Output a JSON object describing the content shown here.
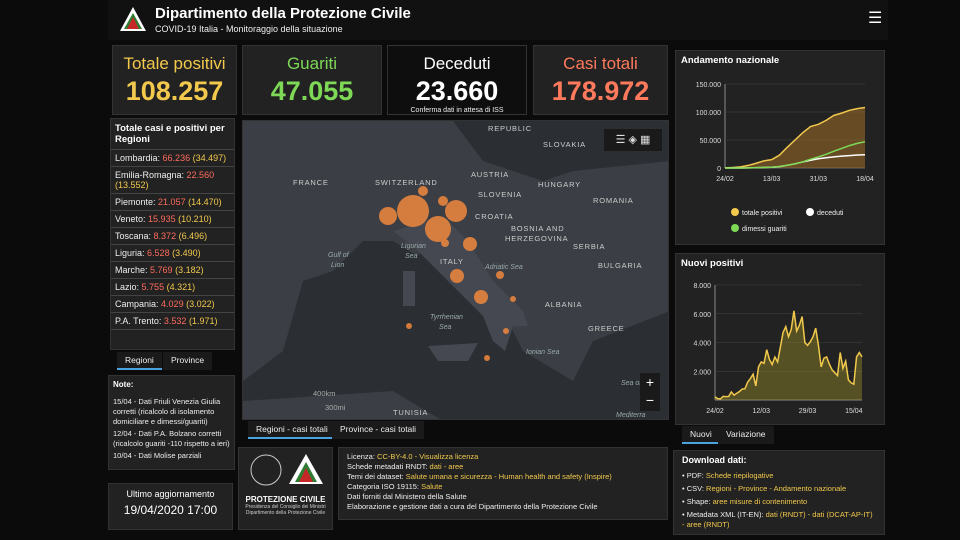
{
  "header": {
    "title": "Dipartimento della Protezione Civile",
    "subtitle": "COVID-19 Italia - Monitoraggio della situazione"
  },
  "kpis": [
    {
      "label": "Totale positivi",
      "value": "108.257"
    },
    {
      "label": "Guariti",
      "value": "47.055"
    },
    {
      "label": "Deceduti",
      "value": "23.660",
      "note": "Conferma dati in attesa di ISS"
    },
    {
      "label": "Casi totali",
      "value": "178.972"
    }
  ],
  "regions": {
    "title": "Totale casi e positivi per Regioni",
    "items": [
      {
        "name": "Lombardia:",
        "value": "66.236",
        "secondary": "(34.497)"
      },
      {
        "name": "Emilia-Romagna:",
        "value": "22.560",
        "secondary": "(13.552)"
      },
      {
        "name": "Piemonte:",
        "value": "21.057",
        "secondary": "(14.470)"
      },
      {
        "name": "Veneto:",
        "value": "15.935",
        "secondary": "(10.210)"
      },
      {
        "name": "Toscana:",
        "value": "8.372",
        "secondary": "(6.496)"
      },
      {
        "name": "Liguria:",
        "value": "6.528",
        "secondary": "(3.490)"
      },
      {
        "name": "Marche:",
        "value": "5.769",
        "secondary": "(3.182)"
      },
      {
        "name": "Lazio:",
        "value": "5.755",
        "secondary": "(4.321)"
      },
      {
        "name": "Campania:",
        "value": "4.029",
        "secondary": "(3.022)"
      },
      {
        "name": "P.A. Trento:",
        "value": "3.532",
        "secondary": "(1.971)"
      }
    ],
    "tabs": [
      "Regioni",
      "Province"
    ]
  },
  "map": {
    "labels": [
      "REPUBLIC",
      "SLOVAKIA",
      "FRANCE",
      "SWITZERLAND",
      "AUSTRIA",
      "HUNGARY",
      "SLOVENIA",
      "CROATIA",
      "ROMANIA",
      "BOSNIA AND",
      "HERZEGOVINA",
      "SERBIA",
      "BULGARIA",
      "Ligurian",
      "Sea",
      "Gulf of",
      "Lion",
      "ITALY",
      "Adriatic Sea",
      "ALBANIA",
      "Tyrrhenian",
      "Sea",
      "GREECE",
      "Ionian Sea",
      "Sea of",
      "TUNISIA",
      "Mediterra"
    ],
    "scale": [
      "400km",
      "300mi"
    ],
    "tabs": [
      "Regioni - casi totali",
      "Province - casi totali"
    ]
  },
  "notes": {
    "title": "Note:",
    "lines": [
      "15/04 - Dati Friuli Venezia Giulia corretti (ricalcolo di isolamento domiciliare e dimessi/guariti)",
      "12/04 - Dati P.A. Bolzano corretti (ricalcolo guariti -110 rispetto a ieri)",
      "10/04 - Dati Molise parziali"
    ]
  },
  "update": {
    "label": "Ultimo aggiornamento",
    "value": "19/04/2020 17:00"
  },
  "logo": {
    "name": "PROTEZIONE CIVILE",
    "line1": "Presidenza del Consiglio dei Ministri",
    "line2": "Dipartimento della Protezione Civile"
  },
  "license": [
    {
      "label": "Licenza:",
      "text": "CC-BY-4.0 - Visualizza licenza"
    },
    {
      "label": "Schede metadati RNDT:",
      "text": "dati - aree"
    },
    {
      "label": "Temi dei dataset:",
      "text": "Salute umana e sicurezza - Human health and safety (Inspire)"
    },
    {
      "label": "Categoria ISO 19115:",
      "text": "Salute"
    },
    {
      "label": "Dati forniti dal Ministero della Salute",
      "text": ""
    },
    {
      "label": "Elaborazione e gestione dati a cura del Dipartimento della Protezione Civile",
      "text": ""
    }
  ],
  "download": {
    "title": "Download dati:",
    "items": [
      {
        "label": "PDF:",
        "text": "Schede riepilogative"
      },
      {
        "label": "CSV:",
        "text": "Regioni - Province - Andamento nazionale"
      },
      {
        "label": "Shape:",
        "text": "aree misure di contenimento"
      },
      {
        "label": "Metadata XML (IT-EN):",
        "text": "dati (RNDT) - dati (DCAT-AP-IT) - aree (RNDT)"
      }
    ]
  },
  "chart_data": [
    {
      "type": "line",
      "title": "Andamento nazionale",
      "categories": [
        "24/02",
        null,
        null,
        null,
        null,
        null,
        "13/03",
        null,
        null,
        null,
        null,
        null,
        "31/03",
        null,
        null,
        null,
        null,
        null,
        "18/04"
      ],
      "series": [
        {
          "name": "totale positivi",
          "color": "#f2c94c",
          "values": [
            200,
            800,
            2000,
            4600,
            8500,
            12800,
            15000,
            23000,
            37000,
            50000,
            63000,
            74000,
            78000,
            85000,
            94000,
            98000,
            103000,
            106000,
            108000
          ]
        },
        {
          "name": "deceduti",
          "color": "#ffffff",
          "values": [
            0,
            0,
            100,
            200,
            500,
            1000,
            1300,
            2500,
            4800,
            7500,
            10800,
            13900,
            16500,
            18300,
            19900,
            21100,
            22200,
            23200,
            23700
          ]
        },
        {
          "name": "dimessi guariti",
          "color": "#7ed957",
          "values": [
            0,
            0,
            50,
            300,
            600,
            1000,
            1300,
            2700,
            5000,
            7400,
            10900,
            15700,
            19800,
            24400,
            30000,
            35000,
            40000,
            44000,
            47000
          ]
        }
      ],
      "ylim": [
        0,
        150000
      ],
      "yticks": [
        0,
        {
          "value": 50000,
          "label": "50.000"
        },
        {
          "value": 100000,
          "label": "100.000"
        },
        {
          "value": 150000,
          "label": "150.000"
        }
      ],
      "grid": true
    },
    {
      "type": "line",
      "title": "Nuovi positivi",
      "categories": [
        "24/02",
        null,
        null,
        null,
        null,
        null,
        null,
        null,
        null,
        null,
        null,
        null,
        null,
        null,
        null,
        null,
        null,
        "12/03",
        null,
        null,
        null,
        null,
        null,
        null,
        null,
        null,
        null,
        null,
        null,
        null,
        null,
        null,
        null,
        null,
        "29/03",
        null,
        null,
        null,
        null,
        null,
        null,
        null,
        null,
        null,
        null,
        null,
        null,
        null,
        null,
        null,
        null,
        "15/04",
        null,
        null,
        null
      ],
      "series": [
        {
          "name": "Nuovi",
          "color": "#f2c94c",
          "values": [
            221,
            93,
            78,
            250,
            238,
            240,
            566,
            342,
            466,
            587,
            769,
            778,
            1247,
            1492,
            1797,
            977,
            2313,
            2651,
            2547,
            3497,
            2823,
            2470,
            2989,
            2648,
            3670,
            4700,
            5100,
            4400,
            4900,
            6200,
            4800,
            5200,
            5800,
            4000,
            3800,
            4050,
            4400,
            5000,
            3800,
            2300,
            2900,
            3000,
            2500,
            2100,
            1900,
            1700,
            3300,
            2200,
            2700,
            1400,
            1200,
            1100,
            3000,
            3300,
            3000
          ]
        }
      ],
      "ylim": [
        0,
        8000
      ],
      "yticks": [
        {
          "value": 2000,
          "label": "2.000"
        },
        {
          "value": 4000,
          "label": "4.000"
        },
        {
          "value": 6000,
          "label": "6.000"
        },
        {
          "value": 8000,
          "label": "8.000"
        }
      ],
      "grid": true,
      "tabs": [
        "Nuovi",
        "Variazione"
      ]
    }
  ]
}
